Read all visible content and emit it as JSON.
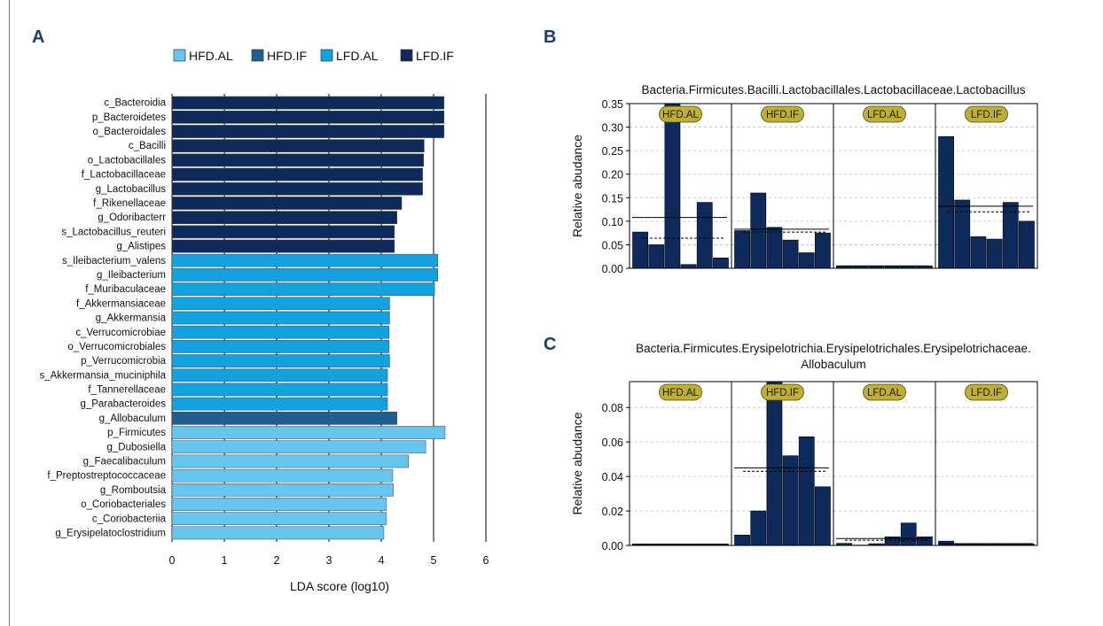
{
  "chart_data": [
    {
      "panel": "A",
      "type": "bar",
      "orientation": "horizontal",
      "xlabel": "LDA score (log10)",
      "xlim": [
        0,
        6
      ],
      "xticks": [
        0,
        1,
        2,
        3,
        4,
        5,
        6
      ],
      "legend": {
        "placement": "top",
        "entries": [
          {
            "name": "HFD.AL",
            "color": "#66c6f0"
          },
          {
            "name": "HFD.IF",
            "color": "#1e5f8e"
          },
          {
            "name": "LFD.AL",
            "color": "#12a2e0"
          },
          {
            "name": "LFD.IF",
            "color": "#0e2a5a"
          }
        ]
      },
      "features": [
        {
          "label": "c_Bacteroidia",
          "value": 5.2,
          "group": "LFD.IF"
        },
        {
          "label": "p_Bacteroidetes",
          "value": 5.2,
          "group": "LFD.IF"
        },
        {
          "label": "o_Bacteroidales",
          "value": 5.2,
          "group": "LFD.IF"
        },
        {
          "label": "c_Bacilli",
          "value": 4.82,
          "group": "LFD.IF"
        },
        {
          "label": "o_Lactobacillales",
          "value": 4.81,
          "group": "LFD.IF"
        },
        {
          "label": "f_Lactobacillaceae",
          "value": 4.79,
          "group": "LFD.IF"
        },
        {
          "label": "g_Lactobacillus",
          "value": 4.79,
          "group": "LFD.IF"
        },
        {
          "label": "f_Rikenellaceae",
          "value": 4.39,
          "group": "LFD.IF"
        },
        {
          "label": "g_Odoribacterr",
          "value": 4.3,
          "group": "LFD.IF"
        },
        {
          "label": "s_Lactobacillus_reuteri",
          "value": 4.25,
          "group": "LFD.IF"
        },
        {
          "label": "g_Alistipes",
          "value": 4.25,
          "group": "LFD.IF"
        },
        {
          "label": "s_Ileibacterium_valens",
          "value": 5.08,
          "group": "LFD.AL"
        },
        {
          "label": "g_Ileibacterium",
          "value": 5.08,
          "group": "LFD.AL"
        },
        {
          "label": "f_Muribaculaceae",
          "value": 5.02,
          "group": "LFD.AL"
        },
        {
          "label": "f_Akkermansiaceae",
          "value": 4.16,
          "group": "LFD.AL"
        },
        {
          "label": "g_Akkermansia",
          "value": 4.16,
          "group": "LFD.AL"
        },
        {
          "label": "c_Verrucomicrobiae",
          "value": 4.15,
          "group": "LFD.AL"
        },
        {
          "label": "o_Verrucomicrobiales",
          "value": 4.15,
          "group": "LFD.AL"
        },
        {
          "label": "p_Verrucomicrobia",
          "value": 4.16,
          "group": "LFD.AL"
        },
        {
          "label": "s_Akkermansia_muciniphila",
          "value": 4.12,
          "group": "LFD.AL"
        },
        {
          "label": "f_Tannerellaceae",
          "value": 4.12,
          "group": "LFD.AL"
        },
        {
          "label": "g_Parabacteroides",
          "value": 4.12,
          "group": "LFD.AL"
        },
        {
          "label": "g_Allobaculum",
          "value": 4.3,
          "group": "HFD.IF"
        },
        {
          "label": "p_Firmicutes",
          "value": 5.22,
          "group": "HFD.AL"
        },
        {
          "label": "g_Dubosiella",
          "value": 4.85,
          "group": "HFD.AL"
        },
        {
          "label": "g_Faecalibaculum",
          "value": 4.52,
          "group": "HFD.AL"
        },
        {
          "label": "f_Preptostreptococcaceae",
          "value": 4.22,
          "group": "HFD.AL"
        },
        {
          "label": "g_Romboutsia",
          "value": 4.23,
          "group": "HFD.AL"
        },
        {
          "label": "o_Coriobacteriales",
          "value": 4.1,
          "group": "HFD.AL"
        },
        {
          "label": "c_Coriobacteriia",
          "value": 4.1,
          "group": "HFD.AL"
        },
        {
          "label": "g_Erysipelatoclostridium",
          "value": 4.05,
          "group": "HFD.AL"
        }
      ]
    },
    {
      "panel": "B",
      "type": "bar",
      "title": "Bacteria.Firmicutes.Bacilli.Lactobacillales.Lactobacillaceae.Lactobacillus",
      "ylabel": "Relative abudance",
      "ylim": [
        0,
        0.35
      ],
      "yticks": [
        0.0,
        0.05,
        0.1,
        0.15,
        0.2,
        0.25,
        0.3,
        0.35
      ],
      "ytick_labels": [
        "0.00",
        "0.05",
        "0.10",
        "0.15",
        "0.20",
        "0.25",
        "0.30",
        "0.35"
      ],
      "grid": true,
      "bar_color": "#0e2a5a",
      "facets": [
        {
          "name": "HFD.AL",
          "values": [
            0.077,
            0.05,
            0.35,
            0.008,
            0.14,
            0.022
          ],
          "mean": 0.108,
          "median": 0.064
        },
        {
          "name": "HFD.IF",
          "values": [
            0.08,
            0.16,
            0.087,
            0.06,
            0.033,
            0.075
          ],
          "mean": 0.083,
          "median": 0.077
        },
        {
          "name": "LFD.AL",
          "values": [
            0.005,
            0.005,
            0.005,
            0.005,
            0.005,
            0.005
          ],
          "mean": 0.005,
          "median": 0.005
        },
        {
          "name": "LFD.IF",
          "values": [
            0.28,
            0.145,
            0.067,
            0.062,
            0.14,
            0.1
          ],
          "mean": 0.132,
          "median": 0.12
        }
      ]
    },
    {
      "panel": "C",
      "type": "bar",
      "title_lines": [
        "Bacteria.Firmicutes.Erysipelotrichia.Erysipelotrichales.Erysipelotrichaceae.",
        "Allobaculum"
      ],
      "ylabel": "Relative abudance",
      "ylim": [
        0,
        0.095
      ],
      "yticks": [
        0.0,
        0.02,
        0.04,
        0.06,
        0.08
      ],
      "ytick_labels": [
        "0.00",
        "0.02",
        "0.04",
        "0.06",
        "0.08"
      ],
      "grid": true,
      "bar_color": "#0e2a5a",
      "facets": [
        {
          "name": "HFD.AL",
          "values": [
            0.0005,
            0.0008,
            0.0008,
            0.0008,
            0.0008,
            0.0008
          ],
          "mean": 0.0008,
          "median": 0.0008
        },
        {
          "name": "HFD.IF",
          "values": [
            0.006,
            0.02,
            0.095,
            0.052,
            0.063,
            0.034
          ],
          "mean": 0.045,
          "median": 0.043
        },
        {
          "name": "LFD.AL",
          "values": [
            0.0012,
            0.0002,
            0.001,
            0.005,
            0.013,
            0.005
          ],
          "mean": 0.004,
          "median": 0.003
        },
        {
          "name": "LFD.IF",
          "values": [
            0.0025,
            0.0008,
            0.0008,
            0.0008,
            0.0008,
            0.0008
          ],
          "mean": 0.001,
          "median": 0.0008
        }
      ]
    }
  ],
  "panel_labels": [
    "A",
    "B",
    "C"
  ]
}
